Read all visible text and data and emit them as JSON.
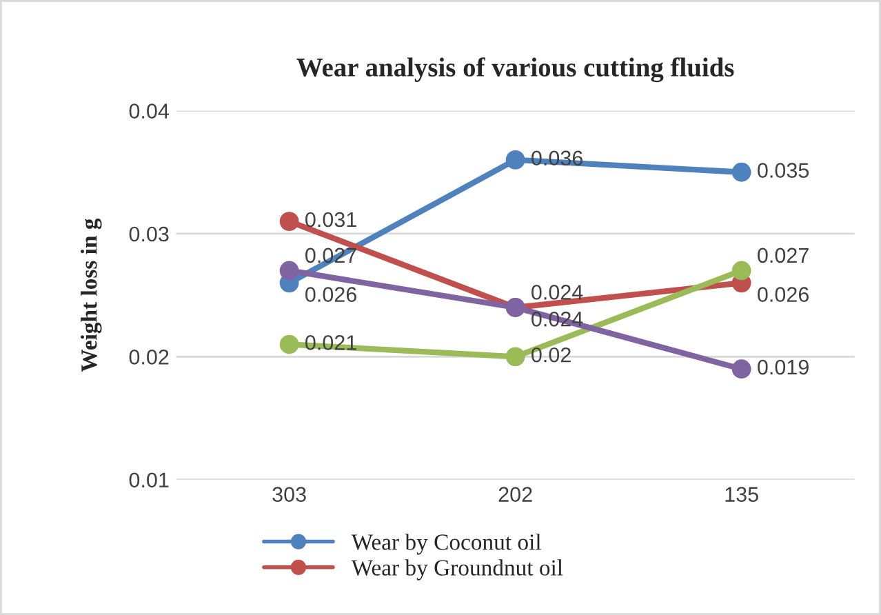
{
  "chart_data": {
    "type": "line",
    "title": "Wear analysis of various cutting fluids",
    "ylabel": "Weight loss in g",
    "categories": [
      "303",
      "202",
      "135"
    ],
    "series": [
      {
        "name": "Wear by Coconut oil",
        "color": "#4f81bd",
        "values": [
          0.026,
          0.036,
          0.035
        ]
      },
      {
        "name": "Wear by Groundnut oil",
        "color": "#c0504d",
        "values": [
          0.031,
          0.024,
          0.026
        ]
      },
      {
        "color": "#9bbb59",
        "values": [
          0.021,
          0.02,
          0.027
        ]
      },
      {
        "color": "#8064a2",
        "values": [
          0.027,
          0.024,
          0.019
        ]
      }
    ],
    "ylim": [
      0.01,
      0.04
    ],
    "yticks": [
      0.01,
      0.02,
      0.03,
      0.04
    ],
    "grid": "y",
    "legend": "bottom",
    "marker": "circle",
    "line_style": "solid",
    "data_labels": true
  }
}
